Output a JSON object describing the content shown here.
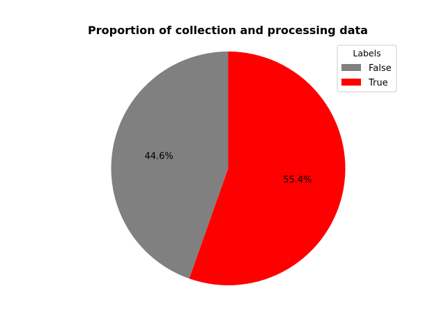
{
  "chart_data": {
    "type": "pie",
    "title": "Proportion of collection and processing data",
    "categories": [
      "False",
      "True"
    ],
    "values": [
      44.6,
      55.4
    ],
    "value_labels": [
      "44.6%",
      "55.4%"
    ],
    "colors": [
      "#808080",
      "#ff0000"
    ],
    "start_angle_deg": 90,
    "direction": "counterclockwise",
    "legend": {
      "title": "Labels",
      "placement": "top-right",
      "entries": [
        "False",
        "True"
      ]
    }
  }
}
